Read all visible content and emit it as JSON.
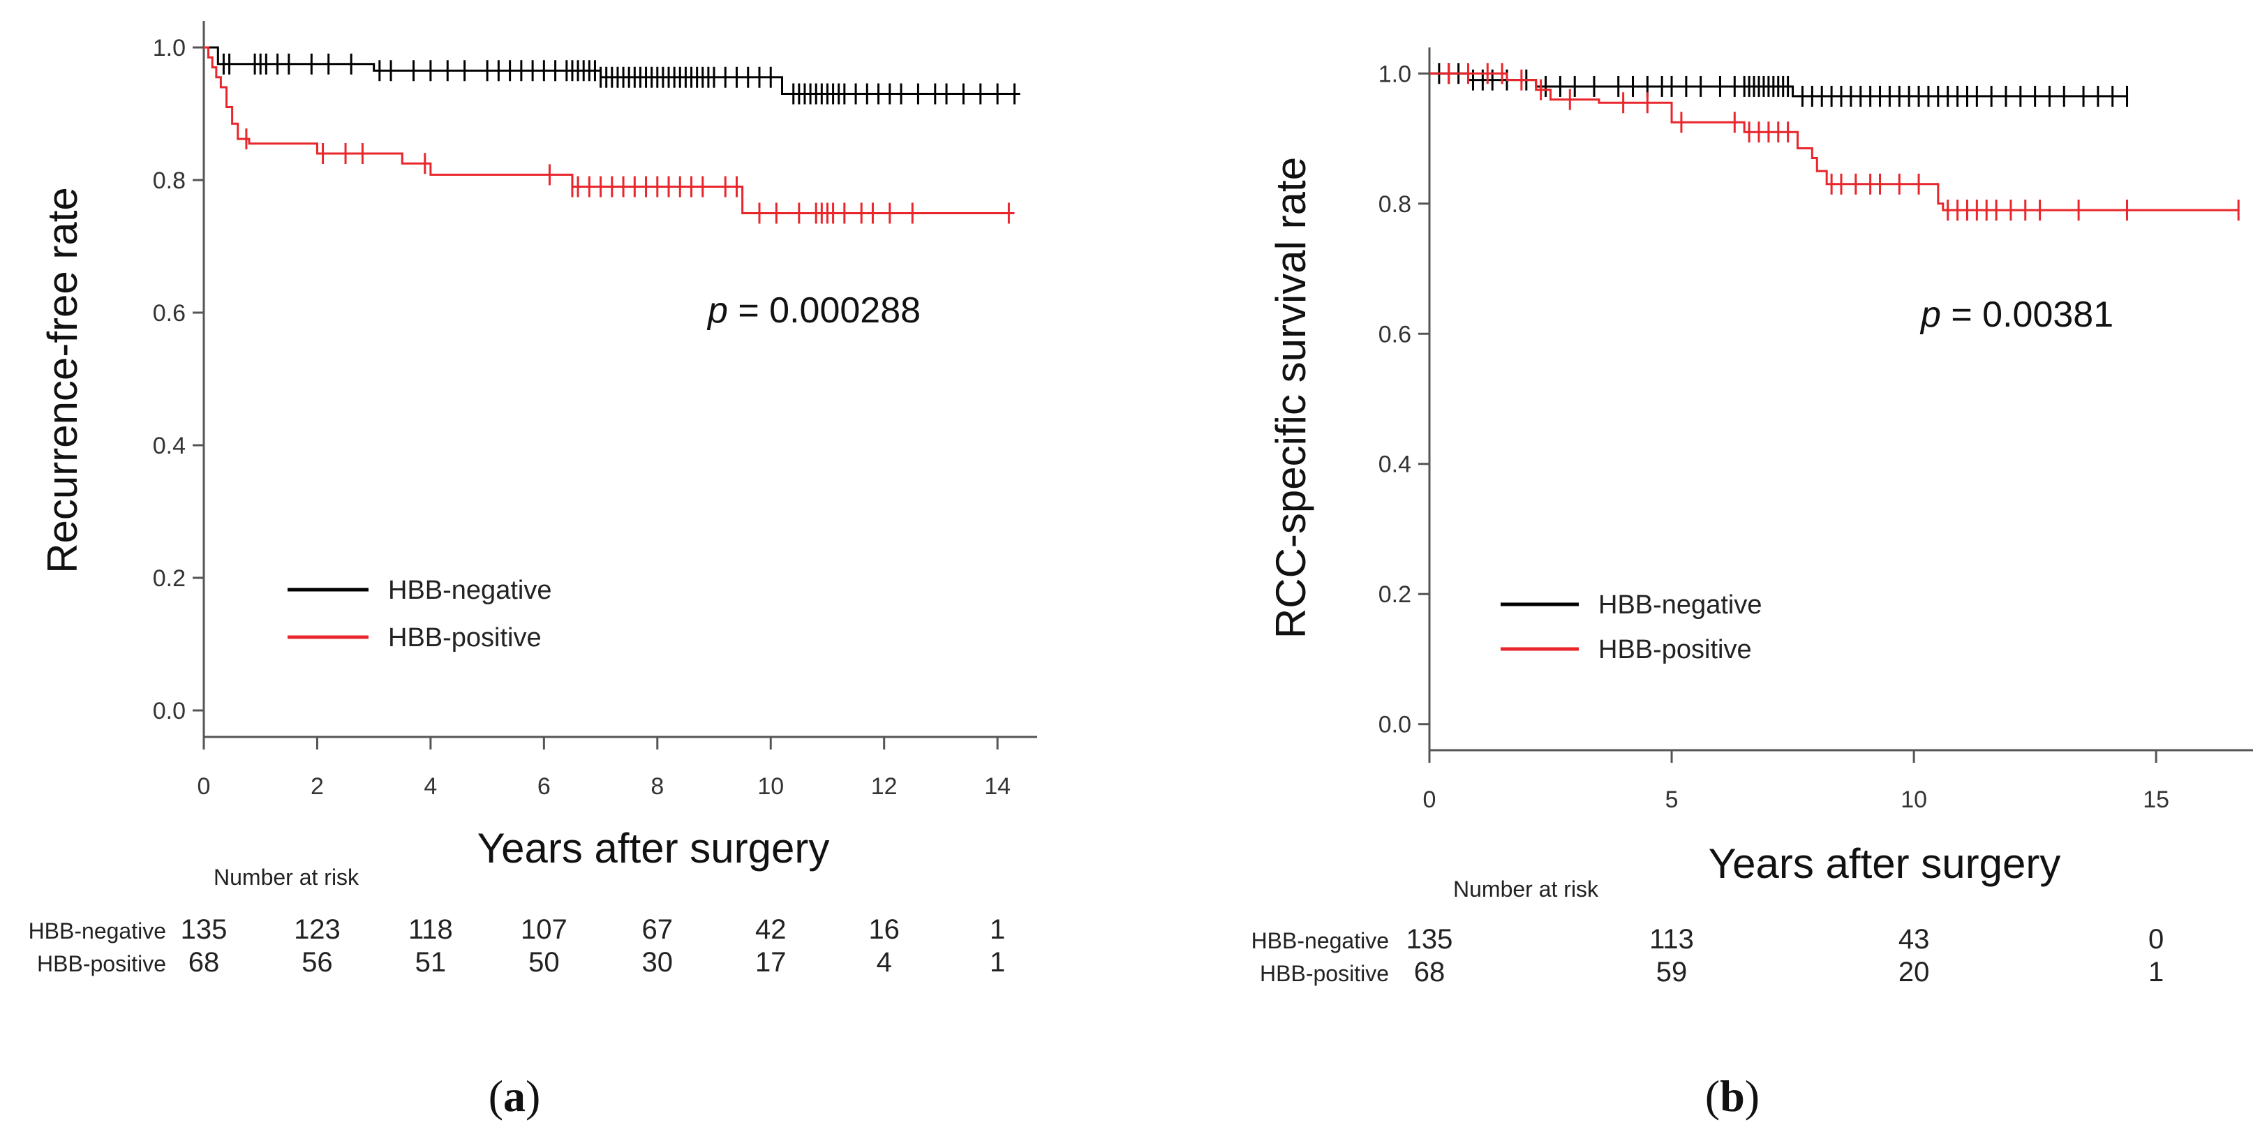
{
  "chart_data": [
    {
      "type": "line",
      "subtype": "kaplan-meier",
      "panel_caption": "(a)",
      "caption_letter": "a",
      "title": "",
      "xlabel": "Years after surgery",
      "ylabel": "Recurrence-free rate",
      "xlim": [
        0,
        14.7
      ],
      "ylim": [
        -0.04,
        1.04
      ],
      "xticks": [
        0,
        2,
        4,
        6,
        8,
        10,
        12,
        14
      ],
      "yticks": [
        0.0,
        0.2,
        0.4,
        0.6,
        0.8,
        1.0
      ],
      "ytick_labels": [
        "0.0",
        "0.2",
        "0.4",
        "0.6",
        "0.8",
        "1.0"
      ],
      "p_value": {
        "label": "p",
        "text": " = 0.000288"
      },
      "legend_position": "lower-left",
      "series": [
        {
          "name": "HBB-negative",
          "color": "#000000",
          "steps": [
            [
              0,
              1.0
            ],
            [
              0.25,
              0.975
            ],
            [
              3.0,
              0.965
            ],
            [
              7.0,
              0.955
            ],
            [
              10.2,
              0.93
            ],
            [
              14.4,
              0.93
            ]
          ],
          "censor": [
            0.35,
            0.45,
            0.9,
            1.0,
            1.1,
            1.3,
            1.5,
            1.9,
            2.2,
            2.6,
            3.1,
            3.3,
            3.7,
            4.0,
            4.3,
            4.6,
            5.0,
            5.2,
            5.4,
            5.6,
            5.8,
            6.0,
            6.2,
            6.4,
            6.5,
            6.6,
            6.7,
            6.8,
            6.9,
            7.0,
            7.1,
            7.2,
            7.3,
            7.4,
            7.5,
            7.6,
            7.7,
            7.8,
            7.9,
            8.0,
            8.1,
            8.2,
            8.3,
            8.4,
            8.5,
            8.6,
            8.7,
            8.8,
            8.9,
            9.0,
            9.2,
            9.4,
            9.6,
            9.8,
            10.0,
            10.4,
            10.5,
            10.6,
            10.7,
            10.8,
            10.9,
            11.0,
            11.1,
            11.2,
            11.3,
            11.5,
            11.7,
            11.9,
            12.1,
            12.3,
            12.6,
            12.9,
            13.1,
            13.4,
            13.7,
            14.0,
            14.3
          ]
        },
        {
          "name": "HBB-positive",
          "color": "#e8262b",
          "steps": [
            [
              0,
              1.0
            ],
            [
              0.08,
              0.985
            ],
            [
              0.15,
              0.97
            ],
            [
              0.22,
              0.955
            ],
            [
              0.3,
              0.94
            ],
            [
              0.4,
              0.91
            ],
            [
              0.5,
              0.885
            ],
            [
              0.6,
              0.862
            ],
            [
              0.8,
              0.855
            ],
            [
              2.0,
              0.84
            ],
            [
              3.5,
              0.825
            ],
            [
              4.0,
              0.808
            ],
            [
              6.5,
              0.79
            ],
            [
              9.5,
              0.75
            ],
            [
              14.3,
              0.75
            ]
          ],
          "censor": [
            0.75,
            2.1,
            2.5,
            2.8,
            3.9,
            6.1,
            6.5,
            6.6,
            6.8,
            7.0,
            7.2,
            7.4,
            7.6,
            7.8,
            8.0,
            8.2,
            8.4,
            8.6,
            8.8,
            9.2,
            9.4,
            9.8,
            10.1,
            10.5,
            10.8,
            10.9,
            11.0,
            11.1,
            11.3,
            11.6,
            11.8,
            12.1,
            12.5,
            14.2
          ]
        }
      ],
      "risk_table": {
        "header": "Number at risk",
        "times": [
          0,
          2,
          4,
          6,
          8,
          10,
          12,
          14
        ],
        "rows": [
          {
            "label": "HBB-negative",
            "values": [
              "135",
              "123",
              "118",
              "107",
              "67",
              "42",
              "16",
              "1"
            ]
          },
          {
            "label": "HBB-positive",
            "values": [
              "68",
              "56",
              "51",
              "50",
              "30",
              "17",
              "4",
              "1"
            ]
          }
        ]
      }
    },
    {
      "type": "line",
      "subtype": "kaplan-meier",
      "panel_caption": "(b)",
      "caption_letter": "b",
      "title": "",
      "xlabel": "Years after surgery",
      "ylabel": "RCC-specific survival rate",
      "xlim": [
        0,
        17.0
      ],
      "ylim": [
        -0.04,
        1.04
      ],
      "xticks": [
        0,
        5,
        10,
        15
      ],
      "yticks": [
        0.0,
        0.2,
        0.4,
        0.6,
        0.8,
        1.0
      ],
      "ytick_labels": [
        "0.0",
        "0.2",
        "0.4",
        "0.6",
        "0.8",
        "1.0"
      ],
      "p_value": {
        "label": "p",
        "text": " = 0.00381"
      },
      "legend_position": "lower-left",
      "series": [
        {
          "name": "HBB-negative",
          "color": "#000000",
          "steps": [
            [
              0,
              1.0
            ],
            [
              0.8,
              0.99
            ],
            [
              2.2,
              0.98
            ],
            [
              7.5,
              0.965
            ],
            [
              14.4,
              0.965
            ]
          ],
          "censor": [
            0.2,
            0.4,
            0.6,
            0.9,
            1.1,
            1.3,
            1.6,
            2.0,
            2.4,
            2.7,
            3.0,
            3.4,
            3.9,
            4.2,
            4.5,
            4.8,
            5.0,
            5.3,
            5.6,
            6.0,
            6.3,
            6.5,
            6.6,
            6.7,
            6.8,
            6.9,
            7.0,
            7.1,
            7.2,
            7.3,
            7.4,
            7.7,
            7.9,
            8.1,
            8.3,
            8.5,
            8.7,
            8.9,
            9.1,
            9.3,
            9.5,
            9.7,
            9.9,
            10.1,
            10.3,
            10.5,
            10.7,
            10.9,
            11.1,
            11.3,
            11.6,
            11.9,
            12.2,
            12.5,
            12.8,
            13.1,
            13.5,
            13.8,
            14.1,
            14.4
          ]
        },
        {
          "name": "HBB-positive",
          "color": "#e8262b",
          "steps": [
            [
              0,
              1.0
            ],
            [
              1.6,
              0.99
            ],
            [
              2.2,
              0.975
            ],
            [
              2.5,
              0.96
            ],
            [
              3.5,
              0.955
            ],
            [
              5.0,
              0.925
            ],
            [
              6.5,
              0.91
            ],
            [
              7.6,
              0.885
            ],
            [
              7.9,
              0.87
            ],
            [
              8.0,
              0.85
            ],
            [
              8.2,
              0.83
            ],
            [
              10.5,
              0.8
            ],
            [
              10.6,
              0.79
            ],
            [
              16.7,
              0.79
            ]
          ],
          "censor": [
            0.4,
            0.8,
            1.2,
            1.5,
            1.9,
            2.3,
            2.9,
            4.0,
            4.5,
            5.2,
            6.3,
            6.6,
            6.8,
            7.0,
            7.2,
            7.4,
            8.3,
            8.5,
            8.8,
            9.1,
            9.3,
            9.7,
            10.1,
            10.7,
            10.9,
            11.1,
            11.3,
            11.5,
            11.7,
            12.0,
            12.3,
            12.6,
            13.4,
            14.4,
            16.7
          ]
        }
      ],
      "risk_table": {
        "header": "Number at risk",
        "times": [
          0,
          5,
          10,
          15
        ],
        "rows": [
          {
            "label": "HBB-negative",
            "values": [
              "135",
              "113",
              "43",
              "0"
            ]
          },
          {
            "label": "HBB-positive",
            "values": [
              "68",
              "59",
              "20",
              "1"
            ]
          }
        ]
      }
    }
  ]
}
